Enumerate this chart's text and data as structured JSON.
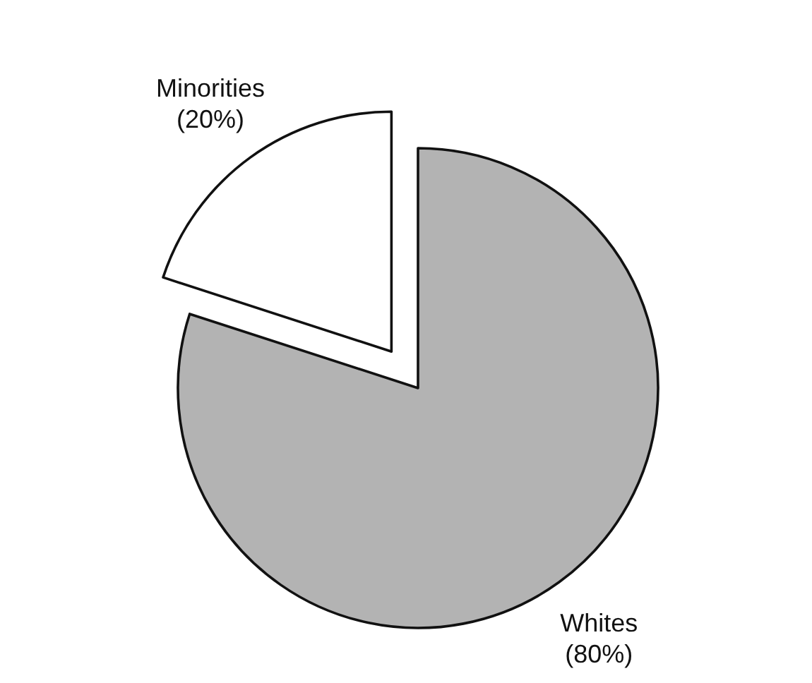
{
  "chart_data": {
    "type": "pie",
    "categories": [
      "Minorities",
      "Whites"
    ],
    "values": [
      20,
      80
    ],
    "colors": [
      "#ffffff",
      "#b3b3b3"
    ],
    "value_labels": [
      "(20%)",
      "(80%)"
    ]
  }
}
